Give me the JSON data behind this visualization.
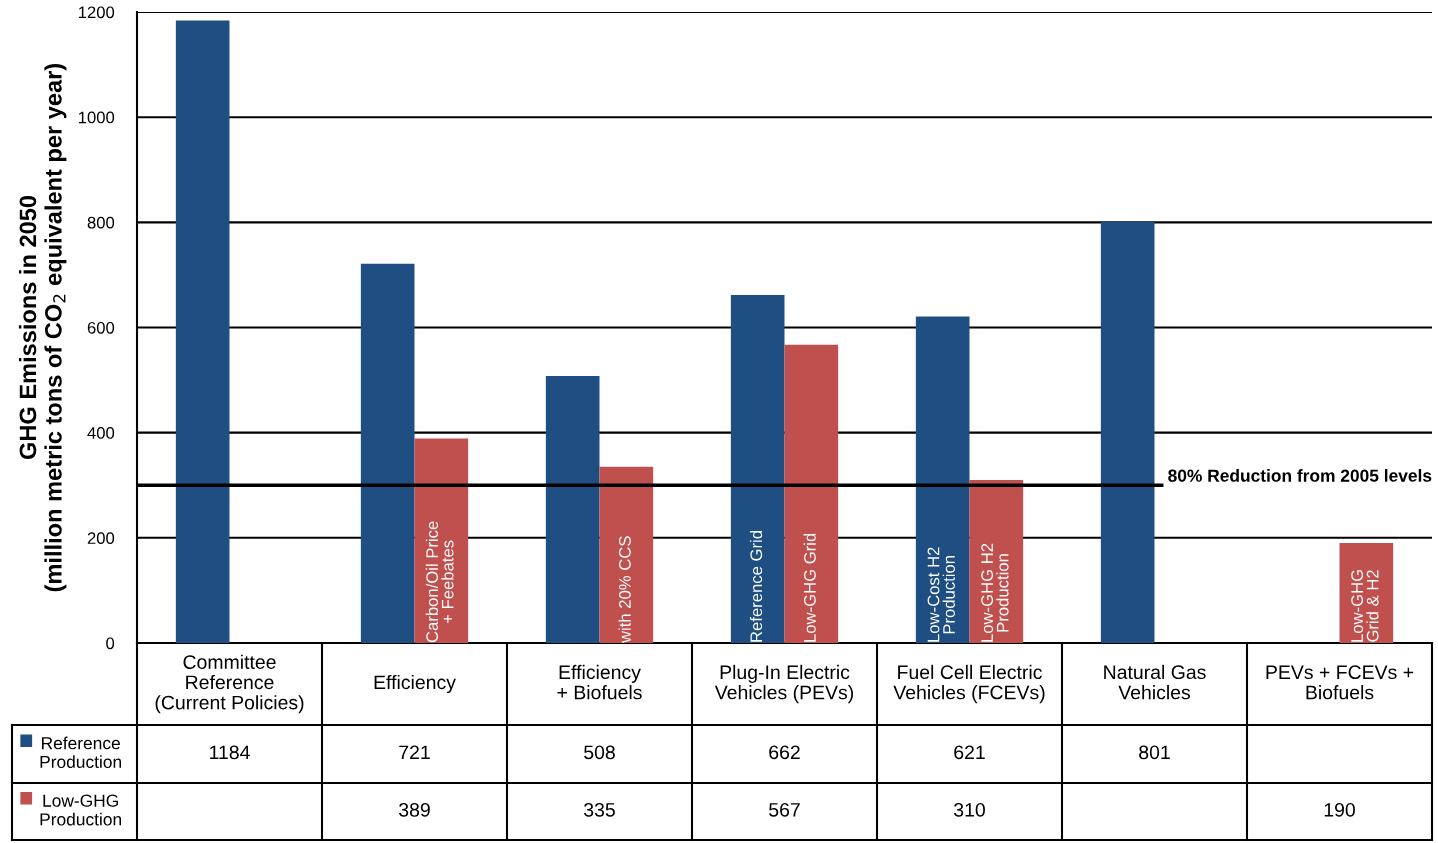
{
  "chart_data": {
    "type": "bar",
    "ylabel": "GHG Emissions in 2050\n(million metric tons of CO$_{2}$ equivalent per year)",
    "categories": [
      "Committee\nReference\n(Current Policies)",
      "Efficiency",
      "Efficiency\n+ Biofuels",
      "Plug-In Electric\nVehicles (PEVs)",
      "Fuel Cell Electric\nVehicles (FCEVs)",
      "Natural Gas\nVehicles",
      "PEVs + FCEVs +\nBiofuels"
    ],
    "series": [
      {
        "name": "Reference\nProduction",
        "color": "#1f4e82",
        "values": [
          1184,
          721,
          508,
          662,
          621,
          801,
          null
        ]
      },
      {
        "name": "Low-GHG\nProduction",
        "color": "#c0504d",
        "values": [
          null,
          389,
          335,
          567,
          310,
          null,
          190
        ]
      }
    ],
    "ylim": [
      0,
      1200
    ],
    "yticks": [
      0,
      200,
      400,
      600,
      800,
      1000,
      1200
    ],
    "grid": "y",
    "legend": "bottom left",
    "data_labels": true,
    "ref_lines": [
      {
        "axis": "y",
        "value": 300,
        "label": "80% Reduction from 2005 levels",
        "color": "#000000"
      }
    ],
    "annotations": [
      {
        "text": "Carbon/Oil Price\n+ Feebates",
        "x": "Efficiency",
        "y": 0
      },
      {
        "text": "with 20% CCS",
        "x": "Efficiency\n+ Biofuels",
        "y": 0
      },
      {
        "text": "Reference Grid",
        "x": "Plug-In Electric\nVehicles (PEVs)",
        "y": 0
      },
      {
        "text": "Low-GHG Grid",
        "x": "Plug-In Electric\nVehicles (PEVs)",
        "y": 0
      },
      {
        "text": "Low-Cost H2\nProduction",
        "x": "Fuel Cell Electric\nVehicles (FCEVs)",
        "y": 0
      },
      {
        "text": "Low-GHG H2\nProduction",
        "x": "Fuel Cell Electric\nVehicles (FCEVs)",
        "y": 0
      },
      {
        "text": "Low-GHG\nGrid & H2",
        "x": "PEVs + FCEVs +\nBiofuels",
        "y": 0
      }
    ]
  }
}
